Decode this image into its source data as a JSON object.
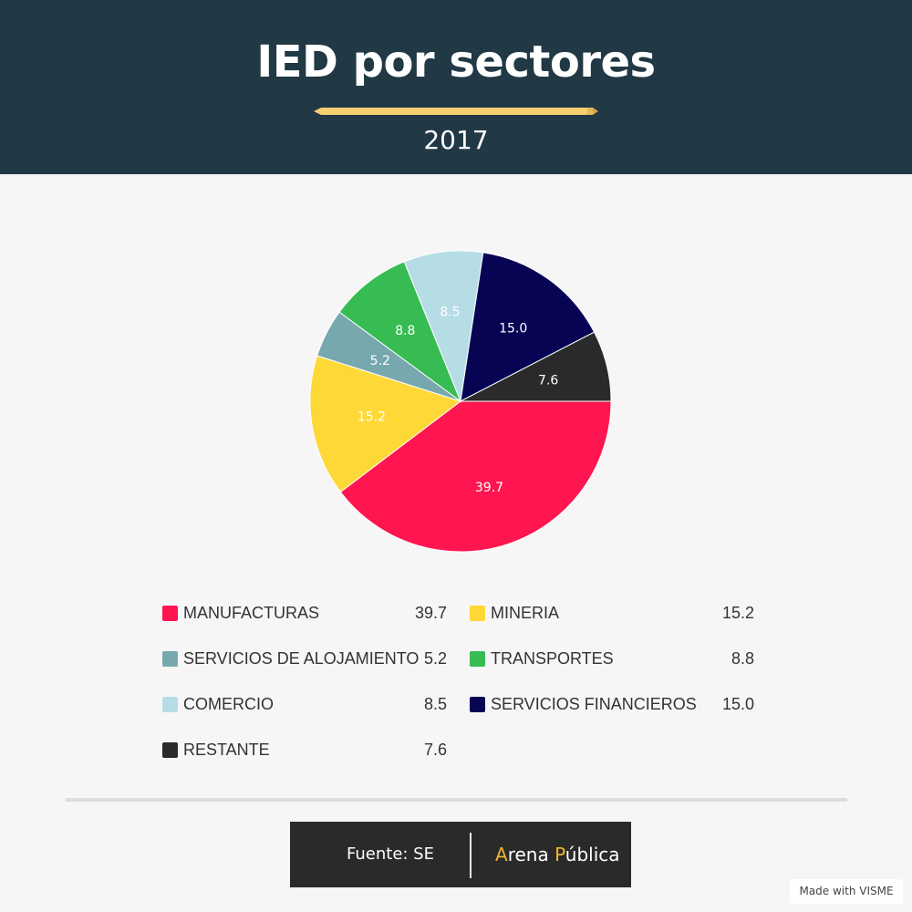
{
  "header": {
    "title": "IED por sectores",
    "subtitle": "2017"
  },
  "colors": {
    "header_bg": "#213845",
    "page_bg": "#f6f6f7",
    "pencil": "#f6cf72",
    "brand_accent": "#f2b530"
  },
  "chart_data": {
    "type": "pie",
    "title": "IED por sectores",
    "subtitle": "2017",
    "legend_position": "bottom",
    "slices": [
      {
        "label": "MANUFACTURAS",
        "value": 39.7,
        "display": "39.7",
        "color": "#ff1550"
      },
      {
        "label": "MINERIA",
        "value": 15.2,
        "display": "15.2",
        "color": "#fed836"
      },
      {
        "label": "SERVICIOS DE ALOJAMIENTO",
        "value": 5.2,
        "display": "5.2",
        "color": "#77a8ad"
      },
      {
        "label": "TRANSPORTES",
        "value": 8.8,
        "display": "8.8",
        "color": "#36bc53"
      },
      {
        "label": "COMERCIO",
        "value": 8.5,
        "display": "8.5",
        "color": "#b6dde6"
      },
      {
        "label": "SERVICIOS FINANCIEROS",
        "value": 15.0,
        "display": "15.0",
        "color": "#070454"
      },
      {
        "label": "RESTANTE",
        "value": 7.6,
        "display": "7.6",
        "color": "#2a2a2a"
      }
    ]
  },
  "footer": {
    "source": "Fuente: SE",
    "brand_prefix": "A",
    "brand_mid": "rena ",
    "brand_accent2": "P",
    "brand_suffix": "ública",
    "badge": "Made with VISME"
  }
}
